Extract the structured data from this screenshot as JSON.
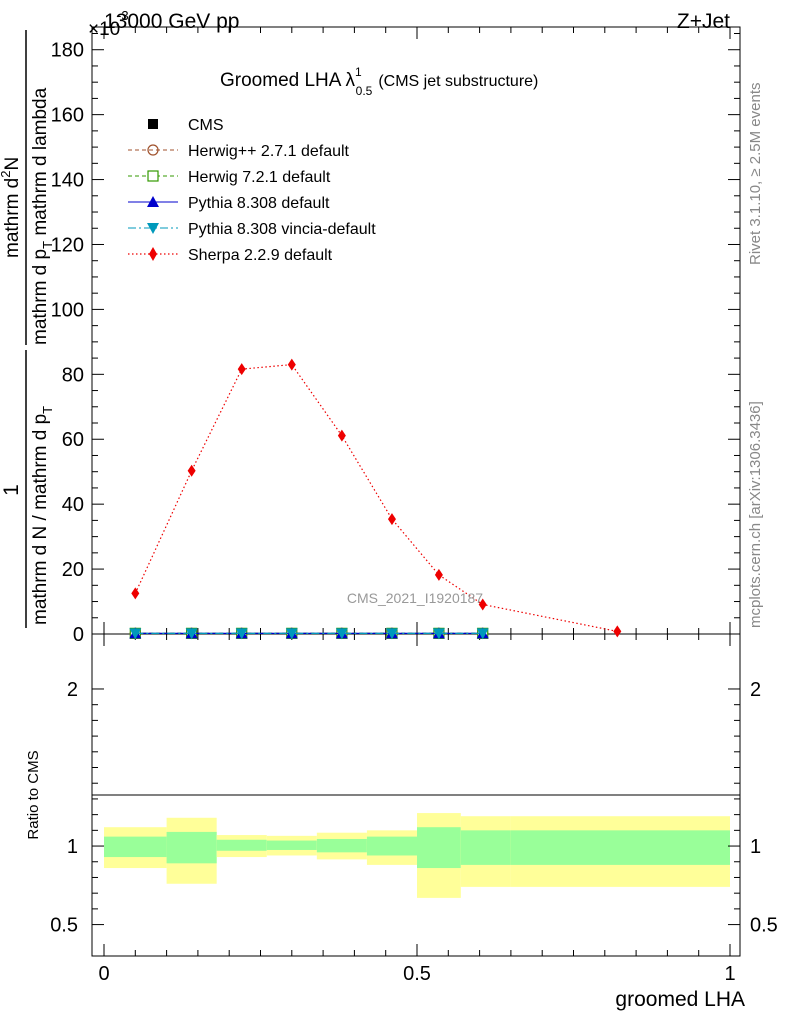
{
  "header": {
    "energy_label": "13000 GeV pp",
    "process_label": "Z+Jet",
    "exponent_label": "×10",
    "exponent_sup": "-3"
  },
  "side_text": {
    "rivet": "Rivet 3.1.10, ≥ 2.5M events",
    "mcplots": "mcplots.cern.ch [arXiv:1306.3436]"
  },
  "plot_title": {
    "main": "Groomed LHA",
    "lambda": "λ",
    "sup": "1",
    "sub": "0.5",
    "suffix": "(CMS jet substructure)"
  },
  "y_axis_label": {
    "numerator_1": "1",
    "denominator_1": "mathrm d N / mathrm d p",
    "denominator_1_sub": "T",
    "numerator_2": "mathrm d",
    "numerator_2_sup": "2",
    "numerator_2_tail": "N",
    "denominator_2": "mathrm d p",
    "denominator_2_sub": "T",
    "denominator_2_tail": " mathrm d lambda"
  },
  "watermark": "CMS_2021_I1920187",
  "x_axis_label": "groomed LHA",
  "ratio_label": "Ratio to CMS",
  "legend": [
    {
      "label": "CMS",
      "color": "#000000",
      "marker": "square-filled",
      "line": "none"
    },
    {
      "label": "Herwig++ 2.7.1 default",
      "color": "#a0522d",
      "marker": "circle-open",
      "line": "dashed"
    },
    {
      "label": "Herwig 7.2.1 default",
      "color": "#339900",
      "marker": "square-open",
      "line": "dashed"
    },
    {
      "label": "Pythia 8.308 default",
      "color": "#0000cc",
      "marker": "triangle-up",
      "line": "solid"
    },
    {
      "label": "Pythia 8.308 vincia-default",
      "color": "#0099bb",
      "marker": "triangle-down",
      "line": "dashdot"
    },
    {
      "label": "Sherpa 2.2.9 default",
      "color": "#ee0000",
      "marker": "diamond",
      "line": "dotted"
    }
  ],
  "chart_data": [
    {
      "type": "line",
      "xlabel": "groomed LHA",
      "xlim": [
        0,
        1
      ],
      "ylim": [
        0,
        187
      ],
      "y_scale_factor": "×10^-3",
      "y_ticks": [
        0,
        20,
        40,
        60,
        80,
        100,
        120,
        140,
        160,
        180
      ],
      "x_ticks": [
        0,
        0.5,
        1
      ],
      "x_tick_labels": [
        "0",
        "0.5",
        "1"
      ],
      "series": [
        {
          "name": "CMS",
          "x": [
            0.05,
            0.14,
            0.22,
            0.3,
            0.38,
            0.46,
            0.535,
            0.605
          ],
          "y": [
            0.2,
            0.2,
            0.2,
            0.2,
            0.2,
            0.2,
            0.2,
            0.2
          ]
        },
        {
          "name": "Herwig++ 2.7.1 default",
          "x": [
            0.05,
            0.14,
            0.22,
            0.3,
            0.38,
            0.46,
            0.535,
            0.605
          ],
          "y": [
            0.2,
            0.2,
            0.2,
            0.2,
            0.2,
            0.2,
            0.2,
            0.2
          ]
        },
        {
          "name": "Herwig 7.2.1 default",
          "x": [
            0.05,
            0.14,
            0.22,
            0.3,
            0.38,
            0.46,
            0.535,
            0.605
          ],
          "y": [
            0.2,
            0.2,
            0.2,
            0.2,
            0.2,
            0.2,
            0.2,
            0.2
          ]
        },
        {
          "name": "Pythia 8.308 default",
          "x": [
            0.05,
            0.14,
            0.22,
            0.3,
            0.38,
            0.46,
            0.535,
            0.605
          ],
          "y": [
            0.2,
            0.2,
            0.2,
            0.2,
            0.2,
            0.2,
            0.2,
            0.2
          ]
        },
        {
          "name": "Pythia 8.308 vincia-default",
          "x": [
            0.05,
            0.14,
            0.22,
            0.3,
            0.38,
            0.46,
            0.535,
            0.605
          ],
          "y": [
            0.2,
            0.2,
            0.2,
            0.2,
            0.2,
            0.2,
            0.2,
            0.2
          ]
        },
        {
          "name": "Sherpa 2.2.9 default",
          "x": [
            0.05,
            0.14,
            0.22,
            0.3,
            0.38,
            0.46,
            0.535,
            0.605,
            0.82
          ],
          "y": [
            12.5,
            50.3,
            81.6,
            83.0,
            61.1,
            35.4,
            18.2,
            9.1,
            0.8
          ]
        }
      ]
    },
    {
      "type": "area",
      "ylabel": "Ratio to CMS",
      "xlim": [
        0,
        1
      ],
      "ylim": [
        0.3,
        2.35
      ],
      "y_ticks": [
        0.5,
        1,
        2
      ],
      "y_tick_labels": [
        "0.5",
        "1",
        "2"
      ],
      "bins": [
        {
          "x_low": 0.0,
          "x_high": 0.1,
          "stat_low": 0.93,
          "stat_high": 1.06,
          "total_low": 0.86,
          "total_high": 1.12
        },
        {
          "x_low": 0.1,
          "x_high": 0.18,
          "stat_low": 0.89,
          "stat_high": 1.09,
          "total_low": 0.76,
          "total_high": 1.18
        },
        {
          "x_low": 0.18,
          "x_high": 0.26,
          "stat_low": 0.97,
          "stat_high": 1.04,
          "total_low": 0.93,
          "total_high": 1.07
        },
        {
          "x_low": 0.26,
          "x_high": 0.34,
          "stat_low": 0.975,
          "stat_high": 1.035,
          "total_low": 0.94,
          "total_high": 1.065
        },
        {
          "x_low": 0.34,
          "x_high": 0.42,
          "stat_low": 0.96,
          "stat_high": 1.045,
          "total_low": 0.915,
          "total_high": 1.085
        },
        {
          "x_low": 0.42,
          "x_high": 0.5,
          "stat_low": 0.94,
          "stat_high": 1.06,
          "total_low": 0.88,
          "total_high": 1.1
        },
        {
          "x_low": 0.5,
          "x_high": 0.57,
          "stat_low": 0.86,
          "stat_high": 1.12,
          "total_low": 0.67,
          "total_high": 1.21
        },
        {
          "x_low": 0.57,
          "x_high": 0.65,
          "stat_low": 0.88,
          "stat_high": 1.1,
          "total_low": 0.74,
          "total_high": 1.19
        },
        {
          "x_low": 0.65,
          "x_high": 1.0,
          "stat_low": 0.88,
          "stat_high": 1.1,
          "total_low": 0.74,
          "total_high": 1.19
        }
      ],
      "reference_line": 1,
      "colors": {
        "stat": "#99ff99",
        "total": "#ffff99"
      }
    }
  ]
}
